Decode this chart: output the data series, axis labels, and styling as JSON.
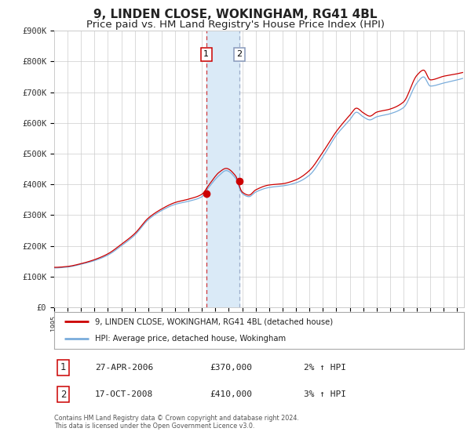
{
  "title": "9, LINDEN CLOSE, WOKINGHAM, RG41 4BL",
  "subtitle": "Price paid vs. HM Land Registry's House Price Index (HPI)",
  "legend_label_red": "9, LINDEN CLOSE, WOKINGHAM, RG41 4BL (detached house)",
  "legend_label_blue": "HPI: Average price, detached house, Wokingham",
  "transaction1_date": "27-APR-2006",
  "transaction1_price": "£370,000",
  "transaction1_hpi": "2% ↑ HPI",
  "transaction1_year": 2006.32,
  "transaction2_date": "17-OCT-2008",
  "transaction2_price": "£410,000",
  "transaction2_hpi": "3% ↑ HPI",
  "transaction2_year": 2008.8,
  "footnote_line1": "Contains HM Land Registry data © Crown copyright and database right 2024.",
  "footnote_line2": "This data is licensed under the Open Government Licence v3.0.",
  "xmin": 1995.0,
  "xmax": 2025.5,
  "ymin": 0,
  "ymax": 900000,
  "red_color": "#cc0000",
  "blue_color": "#7aaddc",
  "shaded_color": "#daeaf7",
  "grid_color": "#cccccc",
  "background_color": "#ffffff",
  "title_fontsize": 11,
  "subtitle_fontsize": 9.5
}
